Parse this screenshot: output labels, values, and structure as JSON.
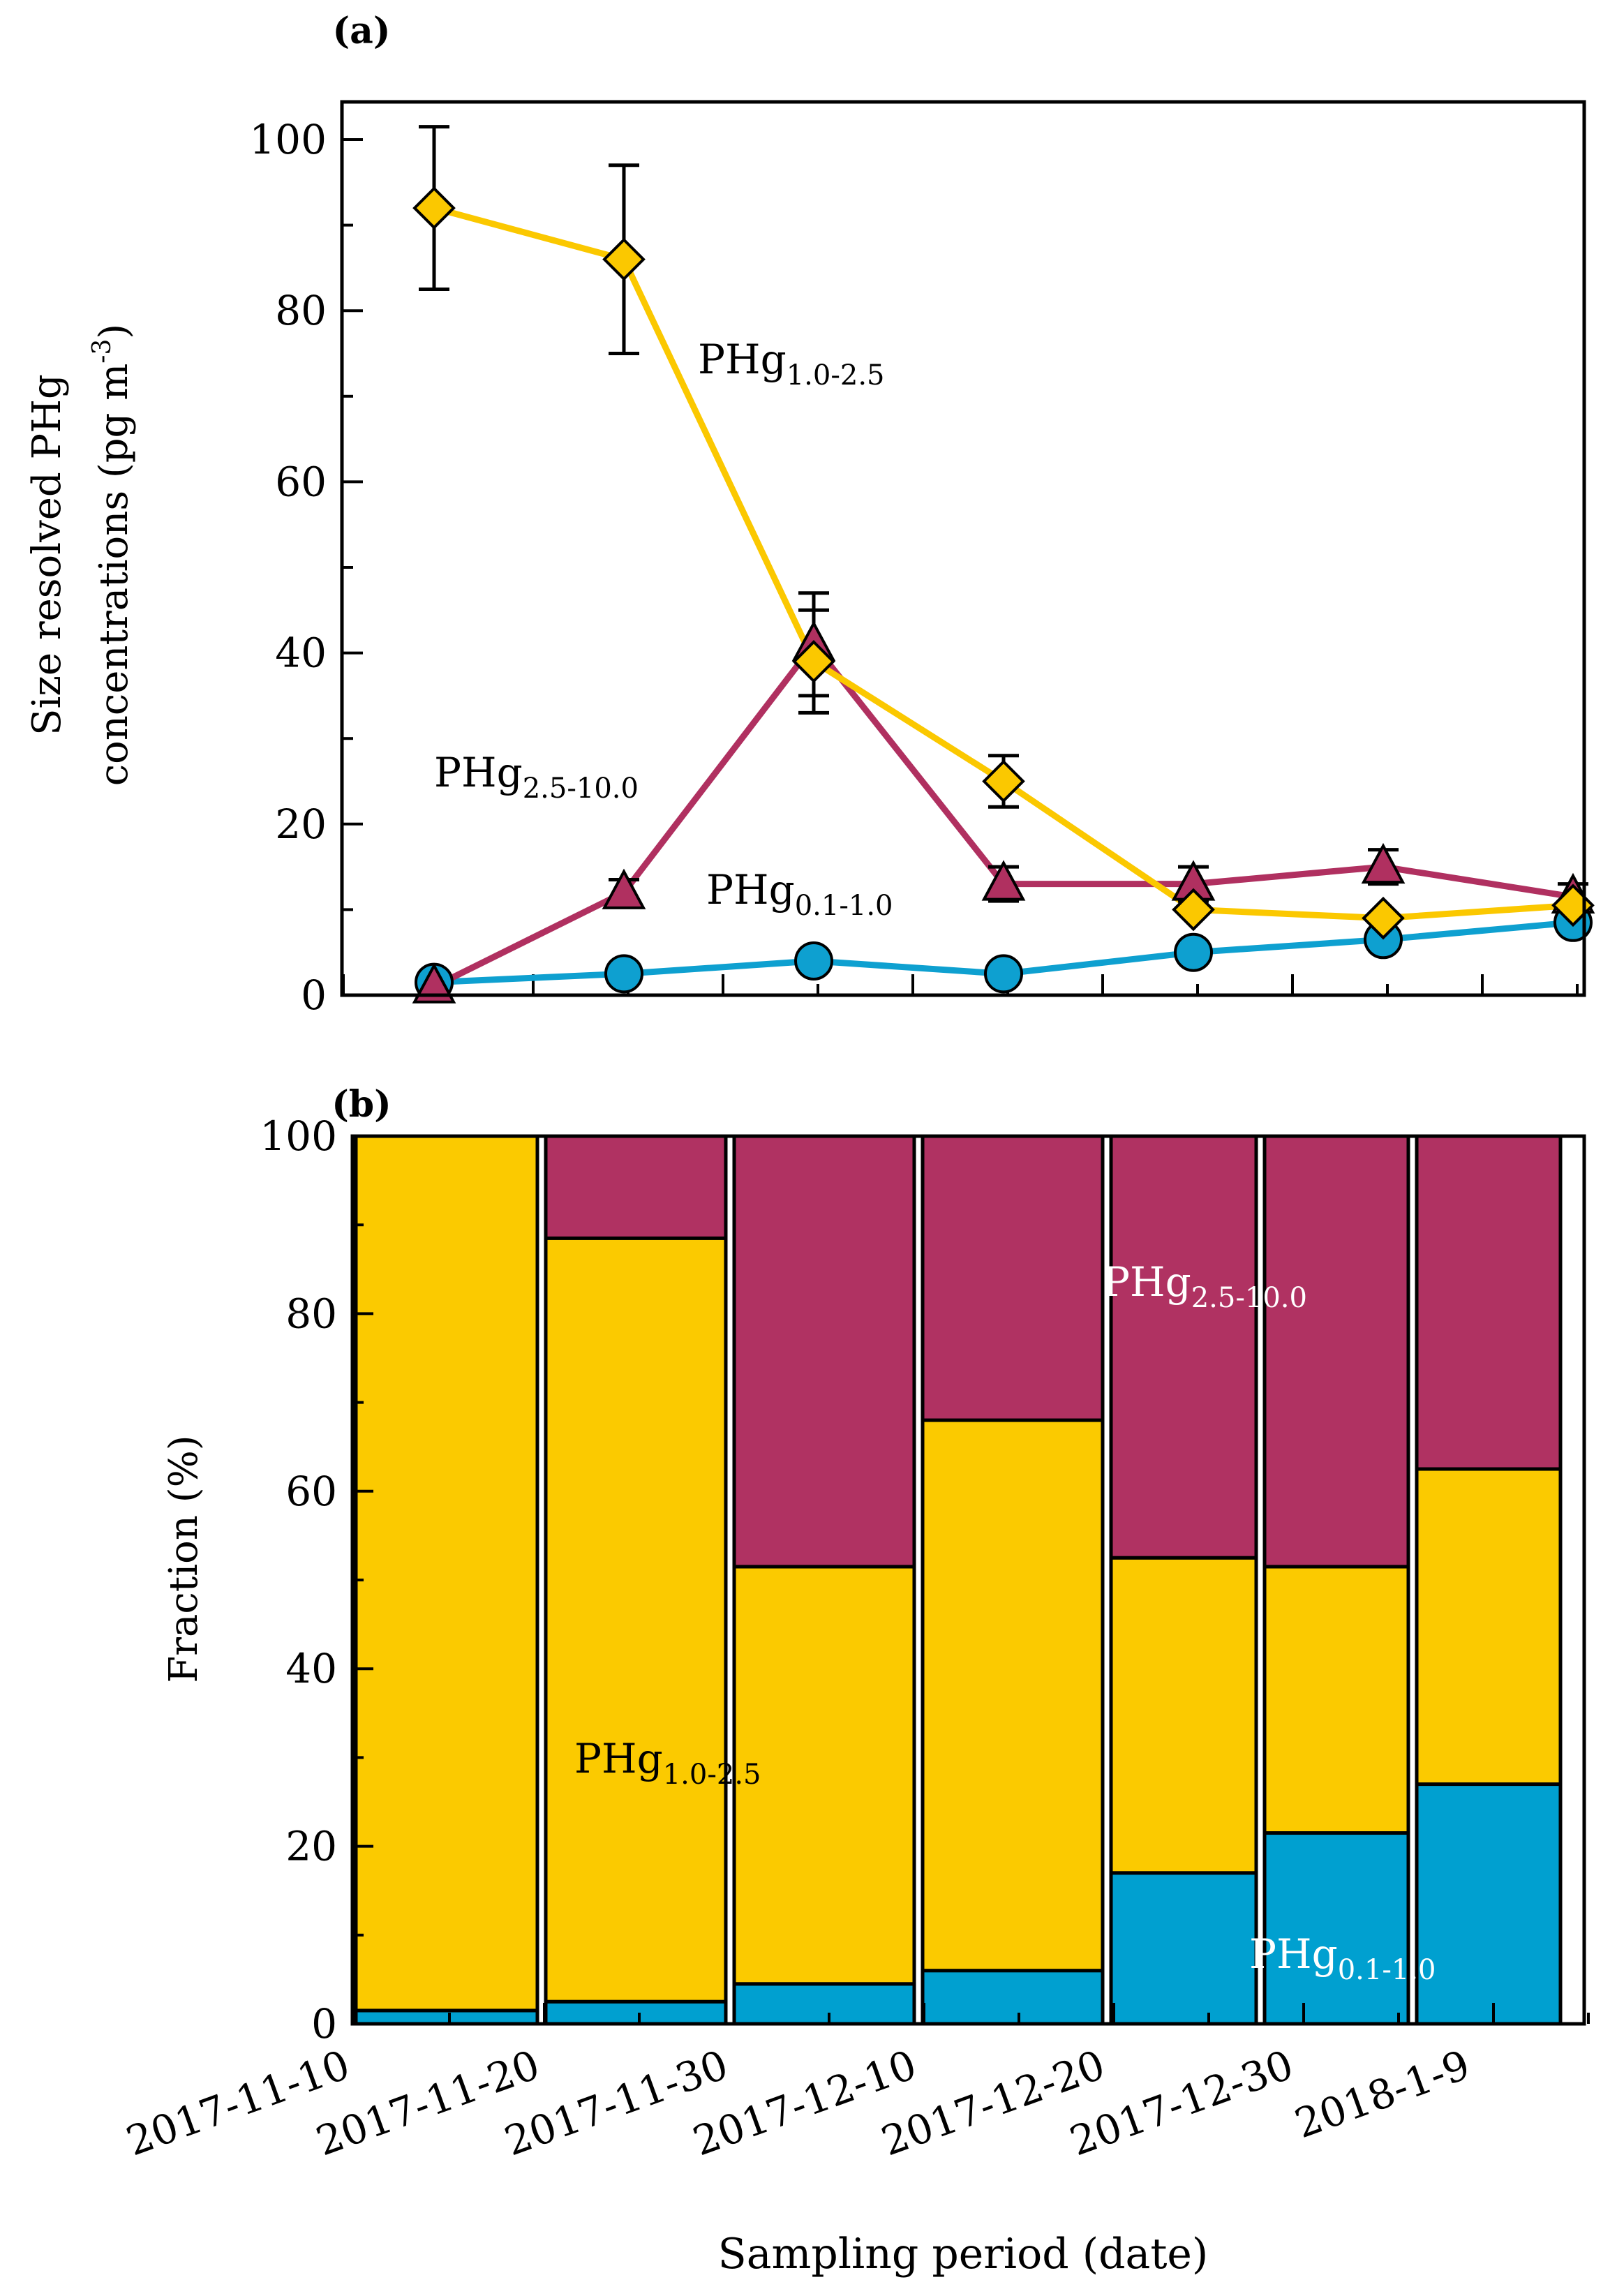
{
  "figure": {
    "x_axis_title": "Sampling period (date)",
    "x_tick_labels": [
      "2017-11-10",
      "2017-11-20",
      "2017-11-30",
      "2017-12-10",
      "2017-12-20",
      "2017-12-30",
      "2018-1-9"
    ]
  },
  "chart_data": [
    {
      "panel": "(a)",
      "type": "line",
      "ylabel_line1": "Size resolved PHg",
      "ylabel_line2": "concentrations (pg m",
      "ylabel_sup": "-3",
      "ylabel_close": ")",
      "ylim": [
        0,
        100
      ],
      "y_ticks": [
        "0",
        "20",
        "40",
        "60",
        "80",
        "100"
      ],
      "x": [
        1,
        2,
        3,
        4,
        5,
        6,
        7
      ],
      "series": [
        {
          "name": "PHg1.0-2.5",
          "label_main": "PHg",
          "label_sub": "1.0-2.5",
          "color": "#FBC800",
          "marker": "diamond",
          "values": [
            92,
            86,
            39,
            25,
            10,
            9,
            10.5
          ],
          "errors": [
            9.5,
            11,
            6,
            3,
            null,
            null,
            null
          ]
        },
        {
          "name": "PHg2.5-10.0",
          "label_main": "PHg",
          "label_sub": "2.5-10.0",
          "color": "#B03060",
          "marker": "triangle",
          "values": [
            1,
            12,
            41,
            13,
            13,
            15,
            11.5
          ],
          "errors": [
            null,
            1.5,
            6,
            2,
            2,
            2,
            1.5
          ]
        },
        {
          "name": "PHg0.1-1.0",
          "label_main": "PHg",
          "label_sub": "0.1-1.0",
          "color": "#0EA0D0",
          "marker": "circle",
          "values": [
            1.5,
            2.5,
            4,
            2.5,
            5,
            6.5,
            8.5
          ],
          "errors": [
            null,
            null,
            null,
            null,
            null,
            null,
            null
          ]
        }
      ]
    },
    {
      "panel": "(b)",
      "type": "bar",
      "stacked": true,
      "ylabel": "Fraction (%)",
      "ylim": [
        0,
        100
      ],
      "y_ticks": [
        "0",
        "20",
        "40",
        "60",
        "80",
        "100"
      ],
      "bar_count": 7,
      "series": [
        {
          "name": "PHg0.1-1.0",
          "label_main": "PHg",
          "label_sub": "0.1-1.0",
          "color": "#00A0D0",
          "values": [
            1.5,
            2.5,
            4.5,
            6,
            17,
            21.5,
            27
          ]
        },
        {
          "name": "PHg1.0-2.5",
          "label_main": "PHg",
          "label_sub": "1.0-2.5",
          "color": "#FBCA00",
          "values": [
            98.5,
            86,
            47,
            62,
            35.5,
            30,
            35.5
          ]
        },
        {
          "name": "PHg2.5-10.0",
          "label_main": "PHg",
          "label_sub": "2.5-10.0",
          "color": "#B03262",
          "values": [
            0,
            11.5,
            48.5,
            32,
            47.5,
            48.5,
            37.5
          ]
        }
      ]
    }
  ]
}
